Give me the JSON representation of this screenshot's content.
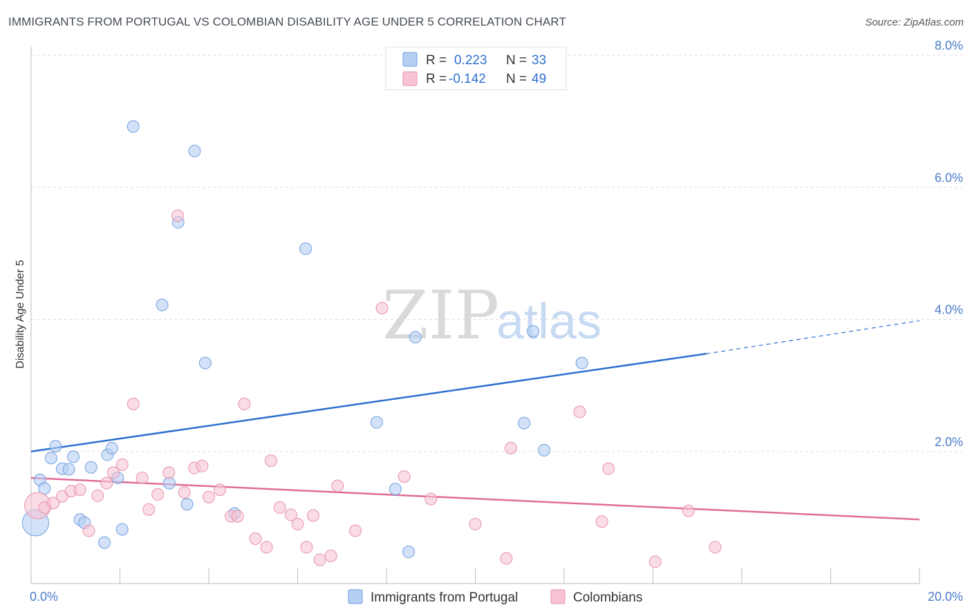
{
  "header": {
    "title": "IMMIGRANTS FROM PORTUGAL VS COLOMBIAN DISABILITY AGE UNDER 5 CORRELATION CHART",
    "source": "Source: ZipAtlas.com"
  },
  "watermark": {
    "zip": "ZIP",
    "atlas": "atlas"
  },
  "colors": {
    "portugal_fill": "#b5cff3",
    "portugal_stroke": "#6f9fdc",
    "portugal_line": "#2b6fcf",
    "colombian_fill": "#f7c4d4",
    "colombian_stroke": "#e691ad",
    "colombian_line": "#e06b96",
    "tick_text": "#4a7cc8",
    "grid": "#dddddd"
  },
  "chart_data": {
    "type": "scatter",
    "ylabel": "Disability Age Under 5",
    "xlim": [
      0,
      20
    ],
    "ylim": [
      0,
      8
    ],
    "x_tick_labels": [
      {
        "value": 0,
        "label": "0.0%"
      },
      {
        "value": 20,
        "label": "20.0%"
      }
    ],
    "y_tick_labels": [
      {
        "value": 2,
        "label": "2.0%"
      },
      {
        "value": 4,
        "label": "4.0%"
      },
      {
        "value": 6,
        "label": "6.0%"
      },
      {
        "value": 8,
        "label": "8.0%"
      }
    ],
    "grid": true,
    "legend": {
      "placement": "top-center",
      "entries": [
        {
          "r_label": "R =",
          "r_value": "0.223",
          "n_label": "N =",
          "n_value": "33"
        },
        {
          "r_label": "R =",
          "r_value": "-0.142",
          "n_label": "N =",
          "n_value": "49"
        }
      ]
    },
    "series": [
      {
        "name": "Immigrants from Portugal",
        "trend": {
          "x0": 0,
          "y0": 2.0,
          "x1": 15.2,
          "y1": 3.48,
          "dash_to_x": 20,
          "dash_to_y": 3.98
        },
        "points": [
          {
            "x": 0.1,
            "y": 0.92,
            "big": true
          },
          {
            "x": 0.2,
            "y": 1.57
          },
          {
            "x": 0.3,
            "y": 1.44
          },
          {
            "x": 0.45,
            "y": 1.9
          },
          {
            "x": 0.55,
            "y": 2.08
          },
          {
            "x": 0.7,
            "y": 1.74
          },
          {
            "x": 0.85,
            "y": 1.73
          },
          {
            "x": 0.95,
            "y": 1.92
          },
          {
            "x": 1.1,
            "y": 0.97
          },
          {
            "x": 1.2,
            "y": 0.92
          },
          {
            "x": 1.35,
            "y": 1.76
          },
          {
            "x": 1.65,
            "y": 0.62
          },
          {
            "x": 1.72,
            "y": 1.95
          },
          {
            "x": 1.82,
            "y": 2.05
          },
          {
            "x": 1.95,
            "y": 1.6
          },
          {
            "x": 2.05,
            "y": 0.82
          },
          {
            "x": 2.3,
            "y": 6.92
          },
          {
            "x": 2.95,
            "y": 4.22
          },
          {
            "x": 3.11,
            "y": 1.52
          },
          {
            "x": 3.31,
            "y": 5.47
          },
          {
            "x": 3.51,
            "y": 1.2
          },
          {
            "x": 3.68,
            "y": 6.55
          },
          {
            "x": 3.92,
            "y": 3.34
          },
          {
            "x": 4.58,
            "y": 1.06
          },
          {
            "x": 6.18,
            "y": 5.07
          },
          {
            "x": 7.78,
            "y": 2.44
          },
          {
            "x": 8.2,
            "y": 1.43
          },
          {
            "x": 8.5,
            "y": 0.48
          },
          {
            "x": 8.65,
            "y": 3.73
          },
          {
            "x": 11.1,
            "y": 2.43
          },
          {
            "x": 11.3,
            "y": 3.82
          },
          {
            "x": 11.55,
            "y": 2.02
          },
          {
            "x": 12.4,
            "y": 3.34
          }
        ]
      },
      {
        "name": "Colombians",
        "trend": {
          "x0": 0,
          "y0": 1.6,
          "x1": 20,
          "y1": 0.97
        },
        "points": [
          {
            "x": 0.15,
            "y": 1.18,
            "big": true
          },
          {
            "x": 0.3,
            "y": 1.15
          },
          {
            "x": 0.5,
            "y": 1.22
          },
          {
            "x": 0.7,
            "y": 1.32
          },
          {
            "x": 0.9,
            "y": 1.4
          },
          {
            "x": 1.1,
            "y": 1.42
          },
          {
            "x": 1.3,
            "y": 0.8
          },
          {
            "x": 1.5,
            "y": 1.33
          },
          {
            "x": 1.7,
            "y": 1.52
          },
          {
            "x": 1.85,
            "y": 1.68
          },
          {
            "x": 2.05,
            "y": 1.8
          },
          {
            "x": 2.3,
            "y": 2.72
          },
          {
            "x": 2.5,
            "y": 1.6
          },
          {
            "x": 2.65,
            "y": 1.12
          },
          {
            "x": 2.85,
            "y": 1.35
          },
          {
            "x": 3.1,
            "y": 1.68
          },
          {
            "x": 3.3,
            "y": 5.57
          },
          {
            "x": 3.45,
            "y": 1.38
          },
          {
            "x": 3.68,
            "y": 1.75
          },
          {
            "x": 3.85,
            "y": 1.78
          },
          {
            "x": 4.0,
            "y": 1.31
          },
          {
            "x": 4.25,
            "y": 1.42
          },
          {
            "x": 4.5,
            "y": 1.02
          },
          {
            "x": 4.65,
            "y": 1.02
          },
          {
            "x": 4.8,
            "y": 2.72
          },
          {
            "x": 5.05,
            "y": 0.68
          },
          {
            "x": 5.3,
            "y": 0.55
          },
          {
            "x": 5.4,
            "y": 1.86
          },
          {
            "x": 5.6,
            "y": 1.15
          },
          {
            "x": 5.85,
            "y": 1.04
          },
          {
            "x": 6.0,
            "y": 0.9
          },
          {
            "x": 6.2,
            "y": 0.55
          },
          {
            "x": 6.35,
            "y": 1.03
          },
          {
            "x": 6.5,
            "y": 0.36
          },
          {
            "x": 6.75,
            "y": 0.42
          },
          {
            "x": 6.9,
            "y": 1.48
          },
          {
            "x": 7.3,
            "y": 0.8
          },
          {
            "x": 7.9,
            "y": 4.17
          },
          {
            "x": 8.4,
            "y": 1.62
          },
          {
            "x": 9.0,
            "y": 1.28
          },
          {
            "x": 10.0,
            "y": 0.9
          },
          {
            "x": 10.7,
            "y": 0.38
          },
          {
            "x": 10.8,
            "y": 2.05
          },
          {
            "x": 12.35,
            "y": 2.6
          },
          {
            "x": 12.85,
            "y": 0.94
          },
          {
            "x": 13.0,
            "y": 1.74
          },
          {
            "x": 14.05,
            "y": 0.33
          },
          {
            "x": 14.8,
            "y": 1.1
          },
          {
            "x": 15.4,
            "y": 0.55
          }
        ]
      }
    ]
  }
}
